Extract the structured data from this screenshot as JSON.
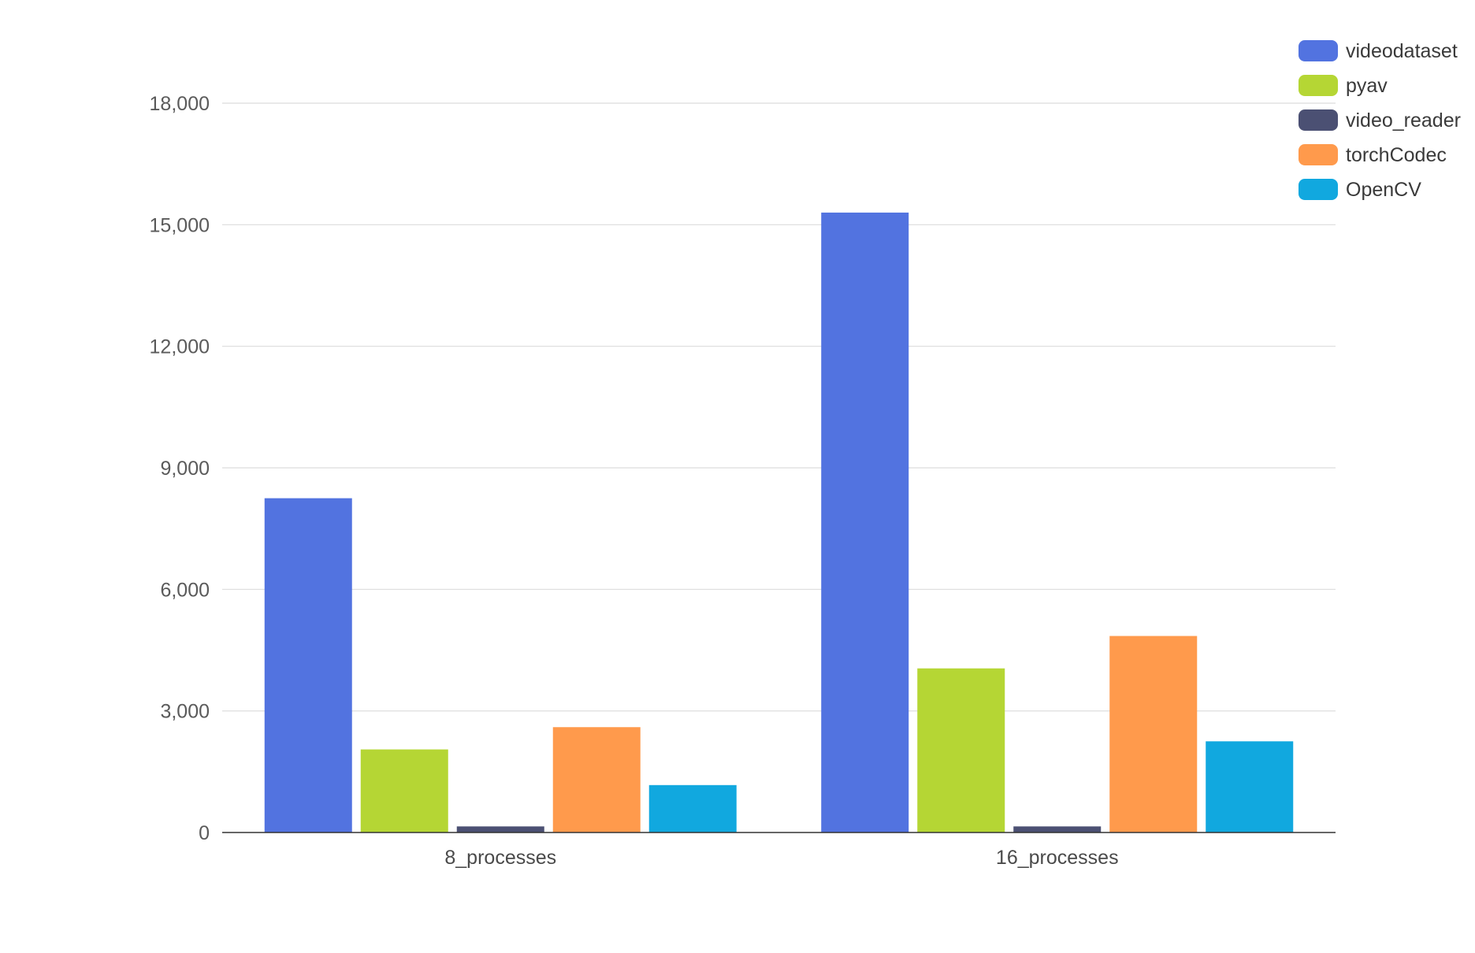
{
  "chart_data": {
    "type": "bar",
    "title": "",
    "xlabel": "",
    "ylabel": "",
    "categories": [
      "8_processes",
      "16_processes"
    ],
    "ylim": [
      0,
      18000
    ],
    "yticks": [
      0,
      3000,
      6000,
      9000,
      12000,
      15000,
      18000
    ],
    "ytick_labels": [
      "0",
      "3,000",
      "6,000",
      "9,000",
      "12,000",
      "15,000",
      "18,000"
    ],
    "grid": true,
    "legend_position": "top-right",
    "series": [
      {
        "name": "videodataset",
        "color": "#5273e0",
        "values": [
          8250,
          15300
        ]
      },
      {
        "name": "pyav",
        "color": "#b5d634",
        "values": [
          2050,
          4050
        ]
      },
      {
        "name": "video_reader",
        "color": "#4b5073",
        "values": [
          150,
          150
        ]
      },
      {
        "name": "torchCodec",
        "color": "#ff9a4c",
        "values": [
          2600,
          4850
        ]
      },
      {
        "name": "OpenCV",
        "color": "#11a8df",
        "values": [
          1170,
          2250
        ]
      }
    ]
  }
}
